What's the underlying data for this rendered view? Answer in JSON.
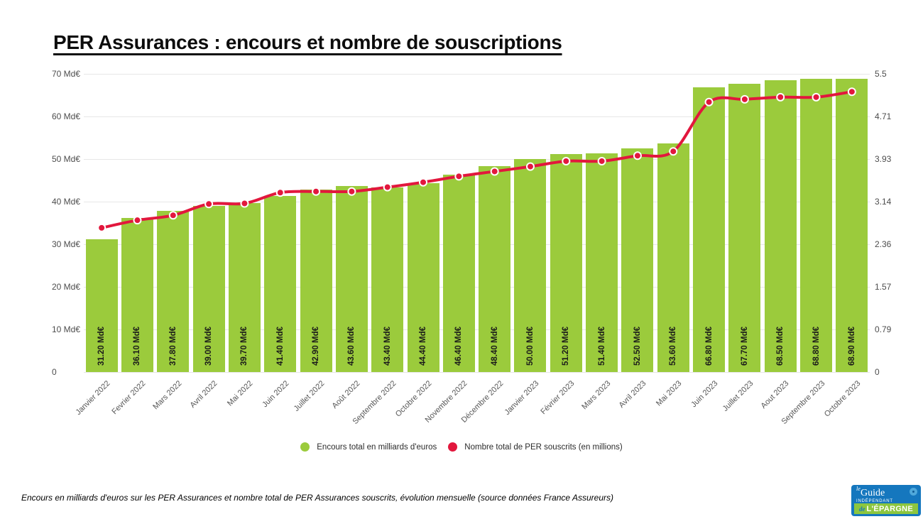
{
  "title": "PER Assurances : encours et nombre de souscriptions",
  "footer": "Encours en milliards d'euros sur les PER Assurances et nombre total de PER Assurances souscrits, évolution mensuelle (source données France Assureurs)",
  "colors": {
    "bar_green": "#9bcb3c",
    "line_red": "#e2173d",
    "grid": "#e7e7e7",
    "logo_blue": "#1577be",
    "logo_green": "#8cc63f"
  },
  "chart_data": {
    "type": "bar+line",
    "categories": [
      "Janvier 2022",
      "Fevrier 2022",
      "Mars 2022",
      "Avril 2022",
      "Mai 2022",
      "Juin 2022",
      "Juillet 2022",
      "Août 2022",
      "Septembre 2022",
      "Octobre 2022",
      "Novembre 2022",
      "Décembre 2022",
      "Janvier 2023",
      "Février 2023",
      "Mars 2023",
      "Avril 2023",
      "Mai 2023",
      "Juin 2023",
      "Juillet 2023",
      "Aout 2023",
      "Septembre 2023",
      "Octobre 2023"
    ],
    "series": [
      {
        "name": "Encours total en milliards d'euros",
        "type": "bar",
        "axis": "left",
        "color": "#9bcb3c",
        "values": [
          31.2,
          36.1,
          37.8,
          39.0,
          39.7,
          41.4,
          42.9,
          43.6,
          43.4,
          44.4,
          46.4,
          48.4,
          50.0,
          51.2,
          51.4,
          52.5,
          53.6,
          66.8,
          67.7,
          68.5,
          68.8,
          68.9
        ],
        "labels": [
          "31.20 Md€",
          "36.10 Md€",
          "37.80 Md€",
          "39.00 Md€",
          "39.70 Md€",
          "41.40 Md€",
          "42.90 Md€",
          "43.60 Md€",
          "43.40 Md€",
          "44.40 Md€",
          "46.40 Md€",
          "48.40 Md€",
          "50.00 Md€",
          "51.20 Md€",
          "51.40 Md€",
          "52.50 Md€",
          "53.60 Md€",
          "66.80 Md€",
          "67.70 Md€",
          "68.50 Md€",
          "68.80 Md€",
          "68.90 Md€"
        ]
      },
      {
        "name": "Nombre total de PER souscrits (en millions)",
        "type": "line",
        "axis": "right",
        "color": "#e2173d",
        "values": [
          2.66,
          2.8,
          2.89,
          3.1,
          3.11,
          3.31,
          3.33,
          3.33,
          3.41,
          3.5,
          3.61,
          3.7,
          3.79,
          3.89,
          3.89,
          3.99,
          4.07,
          4.98,
          5.03,
          5.07,
          5.07,
          5.17
        ]
      }
    ],
    "left_axis": {
      "min": 0,
      "max": 70,
      "ticks": [
        "0",
        "10 Md€",
        "20 Md€",
        "30 Md€",
        "40 Md€",
        "50 Md€",
        "60 Md€",
        "70 Md€"
      ]
    },
    "right_axis": {
      "min": 0,
      "max": 5.5,
      "ticks": [
        "0",
        "0.79",
        "1.57",
        "2.36",
        "3.14",
        "3.93",
        "4.71",
        "5.5"
      ]
    },
    "grid": true,
    "legend_position": "bottom"
  },
  "legend": [
    {
      "label": "Encours total en milliards d'euros",
      "color": "#9bcb3c"
    },
    {
      "label": "Nombre total de PER souscrits (en millions)",
      "color": "#e2173d"
    }
  ],
  "logo": {
    "le": "le",
    "guide": "Guide",
    "independant": "INDÉPENDANT",
    "de": "de",
    "epargne": "L'ÉPARGNE"
  }
}
